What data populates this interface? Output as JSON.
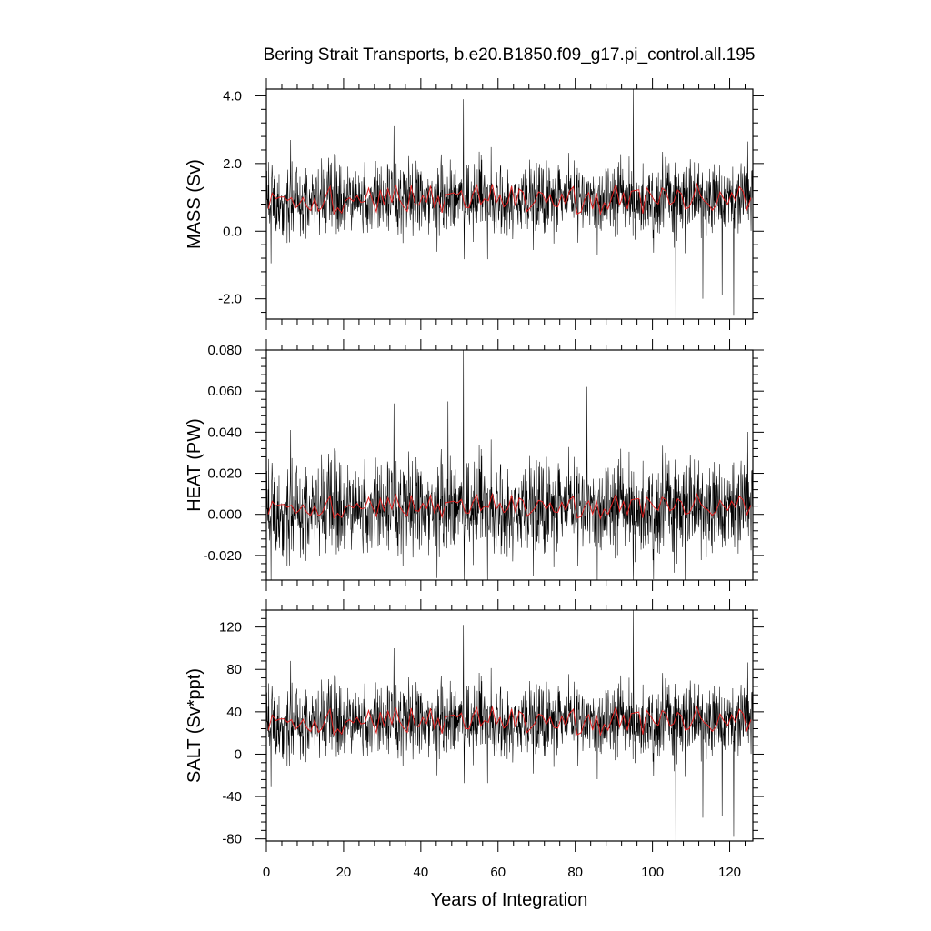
{
  "chart_data": {
    "type": "line",
    "title": "Bering Strait Transports, b.e20.B1850.f09_g17.pi_control.all.195",
    "xlabel": "Years of Integration",
    "xlim": [
      0,
      126
    ],
    "x_ticks": [
      0,
      20,
      40,
      60,
      80,
      100,
      120
    ],
    "x_tick_labels": [
      "0",
      "20",
      "40",
      "60",
      "80",
      "100",
      "120"
    ],
    "series_colors": {
      "monthly": "#000000",
      "annual": "#e02020"
    },
    "panels": [
      {
        "id": "mass",
        "ylabel": "MASS (Sv)",
        "ylim": [
          -2.6,
          4.2
        ],
        "y_ticks": [
          -2.0,
          0.0,
          2.0,
          4.0
        ],
        "y_tick_labels": [
          "-2.0",
          "0.0",
          "2.0",
          "4.0"
        ],
        "monthly_stats": {
          "mean": 0.95,
          "std": 0.55,
          "min": -2.6,
          "max": 4.2
        },
        "annual_range": [
          0.5,
          1.4
        ],
        "spikes": [
          [
            33,
            3.1
          ],
          [
            51,
            3.9
          ],
          [
            95,
            4.2
          ],
          [
            106,
            -2.6
          ],
          [
            121,
            -2.5
          ],
          [
            113,
            -2.0
          ],
          [
            118,
            -1.9
          ]
        ]
      },
      {
        "id": "heat",
        "ylabel": "HEAT (PW)",
        "ylim": [
          -0.032,
          0.08
        ],
        "y_ticks": [
          -0.02,
          0.0,
          0.02,
          0.04,
          0.06,
          0.08
        ],
        "y_tick_labels": [
          "-0.020",
          "0.000",
          "0.020",
          "0.040",
          "0.060",
          "0.080"
        ],
        "monthly_stats": {
          "mean": 0.003,
          "std": 0.012,
          "min": -0.032,
          "max": 0.08
        },
        "annual_range": [
          -0.002,
          0.01
        ],
        "spikes": [
          [
            51,
            0.08
          ],
          [
            83,
            0.062
          ],
          [
            33,
            0.054
          ],
          [
            95,
            -0.032
          ],
          [
            47,
            0.055
          ]
        ]
      },
      {
        "id": "salt",
        "ylabel": "SALT (Sv*ppt)",
        "ylim": [
          -82,
          136
        ],
        "y_ticks": [
          -80,
          -40,
          0,
          40,
          80,
          120
        ],
        "y_tick_labels": [
          "-80",
          "-40",
          "0",
          "40",
          "80",
          "120"
        ],
        "monthly_stats": {
          "mean": 31,
          "std": 18,
          "min": -82,
          "max": 136
        },
        "annual_range": [
          18,
          45
        ],
        "spikes": [
          [
            51,
            122
          ],
          [
            95,
            136
          ],
          [
            33,
            100
          ],
          [
            106,
            -82
          ],
          [
            121,
            -78
          ],
          [
            113,
            -60
          ],
          [
            118,
            -58
          ]
        ]
      }
    ]
  }
}
